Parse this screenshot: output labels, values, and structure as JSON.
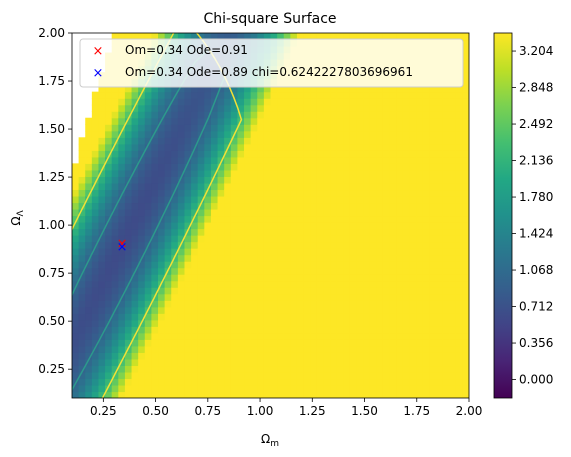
{
  "chart_data": {
    "type": "heatmap",
    "title": "Chi-square Surface",
    "xlabel": "Ω_m",
    "ylabel": "Ω_Λ",
    "xlim": [
      0.1,
      2.0
    ],
    "ylim": [
      0.1,
      2.0
    ],
    "x_ticks": [
      "0.25",
      "0.50",
      "0.75",
      "1.00",
      "1.25",
      "1.50",
      "1.75",
      "2.00"
    ],
    "y_ticks": [
      "0.25",
      "0.50",
      "0.75",
      "1.00",
      "1.25",
      "1.50",
      "1.75",
      "2.00"
    ],
    "x_tick_values": [
      0.25,
      0.5,
      0.75,
      1.0,
      1.25,
      1.5,
      1.75,
      2.0
    ],
    "y_tick_values": [
      0.25,
      0.5,
      0.75,
      1.0,
      1.25,
      1.5,
      1.75,
      2.0
    ],
    "colorbar": {
      "ticks": [
        "0.000",
        "0.356",
        "0.712",
        "1.068",
        "1.424",
        "1.780",
        "2.136",
        "2.492",
        "2.848",
        "3.204"
      ],
      "tick_values": [
        0.0,
        0.356,
        0.712,
        1.068,
        1.424,
        1.78,
        2.136,
        2.492,
        2.848,
        3.204
      ],
      "vmin": -0.18,
      "vmax": 3.38,
      "colormap": "viridis"
    },
    "contour_levels": [
      {
        "value": 1.0,
        "color": "#2c9a8c"
      },
      {
        "value": 2.3,
        "color": "#f2e136"
      }
    ],
    "excluded_region": "upper-left corner left blank (no valid values)",
    "grid": false,
    "legend_position": "upper-left",
    "legend": [
      {
        "marker": "x",
        "color": "#ff0000",
        "label": "Om=0.34 Ode=0.91",
        "x": 0.34,
        "y": 0.91
      },
      {
        "marker": "x",
        "color": "#0000ff",
        "label": "Om=0.34 Ode=0.89 chi=0.6242227803696961",
        "x": 0.34,
        "y": 0.89
      }
    ]
  }
}
